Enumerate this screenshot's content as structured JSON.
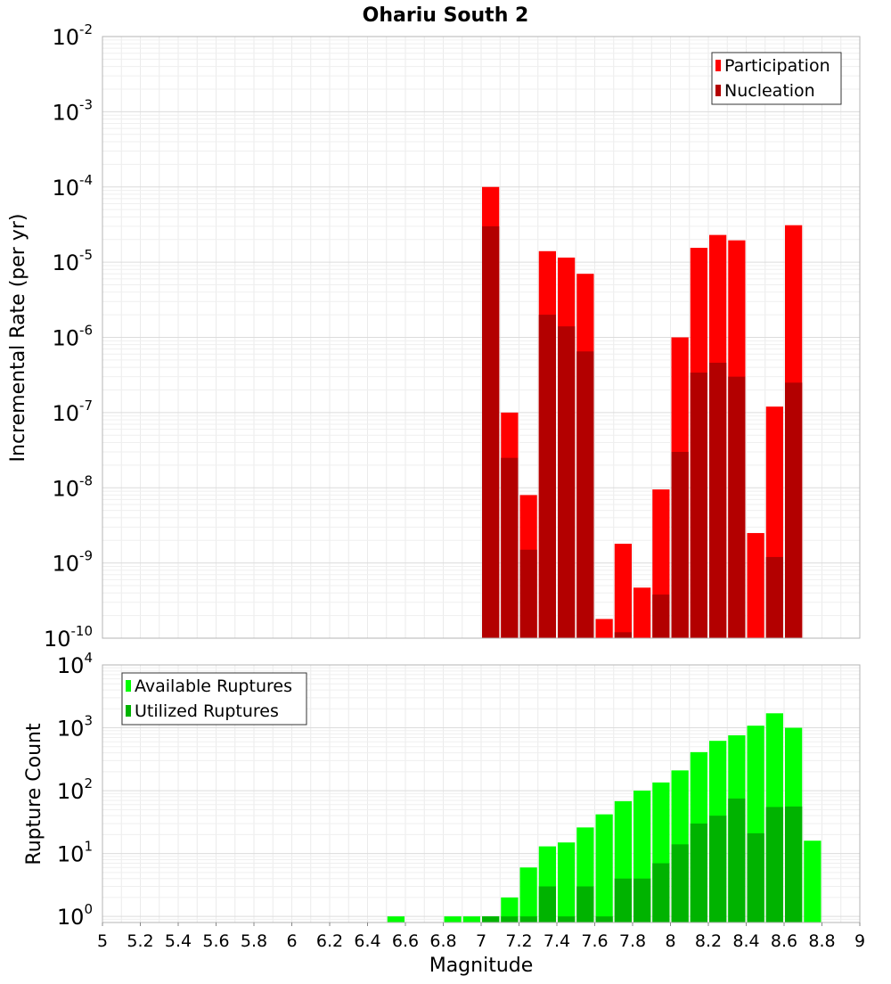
{
  "chart_data": [
    {
      "type": "bar",
      "title": "Ohariu South 2",
      "ylabel": "Incremental Rate (per yr)",
      "yscale": "log",
      "ylim": [
        1e-10,
        0.01
      ],
      "xlim": [
        5,
        9
      ],
      "y_ticks": [
        {
          "base": "10",
          "exp": "-10",
          "value": 1e-10
        },
        {
          "base": "10",
          "exp": "-9",
          "value": 1e-09
        },
        {
          "base": "10",
          "exp": "-8",
          "value": 1e-08
        },
        {
          "base": "10",
          "exp": "-7",
          "value": 1e-07
        },
        {
          "base": "10",
          "exp": "-6",
          "value": 1e-06
        },
        {
          "base": "10",
          "exp": "-5",
          "value": 1e-05
        },
        {
          "base": "10",
          "exp": "-4",
          "value": 0.0001
        },
        {
          "base": "10",
          "exp": "-3",
          "value": 0.001
        },
        {
          "base": "10",
          "exp": "-2",
          "value": 0.01
        }
      ],
      "legend": {
        "position": "top-right",
        "entries": [
          "Participation",
          "Nucleation"
        ]
      },
      "series": [
        {
          "name": "Participation",
          "color": "#ff0000",
          "x": [
            7.05,
            7.15,
            7.25,
            7.35,
            7.45,
            7.55,
            7.65,
            7.75,
            7.85,
            7.95,
            8.05,
            8.15,
            8.25,
            8.35,
            8.45,
            8.55,
            8.65
          ],
          "values": [
            0.0001,
            1e-07,
            8e-09,
            1.4e-05,
            1.15e-05,
            7e-06,
            1.8e-10,
            1.8e-09,
            4.7e-10,
            9.5e-09,
            1e-06,
            1.55e-05,
            2.3e-05,
            1.95e-05,
            2.5e-09,
            1.2e-07,
            3.1e-05
          ]
        },
        {
          "name": "Nucleation",
          "color": "#b30000",
          "x": [
            7.05,
            7.15,
            7.25,
            7.35,
            7.45,
            7.55,
            7.65,
            7.75,
            7.85,
            7.95,
            8.05,
            8.15,
            8.25,
            8.35,
            8.45,
            8.55,
            8.65
          ],
          "values": [
            3e-05,
            2.5e-08,
            1.5e-09,
            2e-06,
            1.4e-06,
            6.5e-07,
            0,
            1.2e-10,
            0,
            3.8e-10,
            3e-08,
            3.4e-07,
            4.6e-07,
            3e-07,
            0,
            1.2e-09,
            2.5e-07
          ]
        }
      ]
    },
    {
      "type": "bar",
      "title": "",
      "xlabel": "Magnitude",
      "ylabel": "Rupture Count",
      "yscale": "log",
      "ylim": [
        0.8,
        10000
      ],
      "xlim": [
        5,
        9
      ],
      "x_ticks": [
        "5",
        "5.2",
        "5.4",
        "5.6",
        "5.8",
        "6",
        "6.2",
        "6.4",
        "6.6",
        "6.8",
        "7",
        "7.2",
        "7.4",
        "7.6",
        "7.8",
        "8",
        "8.2",
        "8.4",
        "8.6",
        "8.8",
        "9"
      ],
      "y_ticks": [
        {
          "base": "10",
          "exp": "0",
          "value": 1
        },
        {
          "base": "10",
          "exp": "1",
          "value": 10
        },
        {
          "base": "10",
          "exp": "2",
          "value": 100
        },
        {
          "base": "10",
          "exp": "3",
          "value": 1000
        },
        {
          "base": "10",
          "exp": "4",
          "value": 10000
        }
      ],
      "legend": {
        "position": "top-left",
        "entries": [
          "Available Ruptures",
          "Utilized Ruptures"
        ]
      },
      "series": [
        {
          "name": "Available Ruptures",
          "color": "#00ff00",
          "x": [
            6.55,
            6.85,
            6.95,
            7.05,
            7.15,
            7.25,
            7.35,
            7.45,
            7.55,
            7.65,
            7.75,
            7.85,
            7.95,
            8.05,
            8.15,
            8.25,
            8.35,
            8.45,
            8.55,
            8.65,
            8.75
          ],
          "values": [
            1,
            1,
            1,
            1,
            2,
            6,
            13,
            15,
            26,
            42,
            68,
            100,
            135,
            210,
            410,
            620,
            760,
            1080,
            1700,
            1000,
            16
          ]
        },
        {
          "name": "Utilized Ruptures",
          "color": "#00b300",
          "x": [
            6.55,
            6.85,
            6.95,
            7.05,
            7.15,
            7.25,
            7.35,
            7.45,
            7.55,
            7.65,
            7.75,
            7.85,
            7.95,
            8.05,
            8.15,
            8.25,
            8.35,
            8.45,
            8.55,
            8.65,
            8.75
          ],
          "values": [
            0,
            0,
            0,
            1,
            1,
            1,
            3,
            1,
            3,
            1,
            4,
            4,
            7,
            14,
            30,
            40,
            75,
            21,
            55,
            56,
            0
          ]
        }
      ]
    }
  ]
}
